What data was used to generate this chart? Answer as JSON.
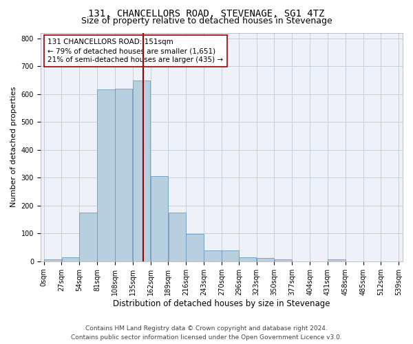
{
  "title": "131, CHANCELLORS ROAD, STEVENAGE, SG1 4TZ",
  "subtitle": "Size of property relative to detached houses in Stevenage",
  "xlabel": "Distribution of detached houses by size in Stevenage",
  "ylabel": "Number of detached properties",
  "footer_line1": "Contains HM Land Registry data © Crown copyright and database right 2024.",
  "footer_line2": "Contains public sector information licensed under the Open Government Licence v3.0.",
  "annotation_line1": "131 CHANCELLORS ROAD: 151sqm",
  "annotation_line2": "← 79% of detached houses are smaller (1,651)",
  "annotation_line3": "21% of semi-detached houses are larger (435) →",
  "property_size": 151,
  "bar_bins": [
    0,
    27,
    54,
    81,
    108,
    135,
    162,
    189,
    216,
    243,
    270,
    296,
    323,
    350,
    377,
    404,
    431,
    458,
    485,
    512,
    539
  ],
  "bar_heights": [
    7,
    14,
    175,
    617,
    620,
    648,
    305,
    174,
    98,
    40,
    40,
    15,
    12,
    7,
    0,
    0,
    6,
    0,
    0,
    0
  ],
  "bar_color": "#b8cfe0",
  "bar_edge_color": "#6a9bbf",
  "vline_color": "#990000",
  "annotation_box_edge": "#990000",
  "bg_color": "#eef2f8",
  "grid_color": "#c5d0e0",
  "title_fontsize": 10,
  "subtitle_fontsize": 9,
  "xlabel_fontsize": 8.5,
  "ylabel_fontsize": 8,
  "tick_fontsize": 7,
  "annotation_fontsize": 7.5,
  "footer_fontsize": 6.5,
  "ylim": [
    0,
    820
  ],
  "xlim": [
    -5,
    545
  ]
}
